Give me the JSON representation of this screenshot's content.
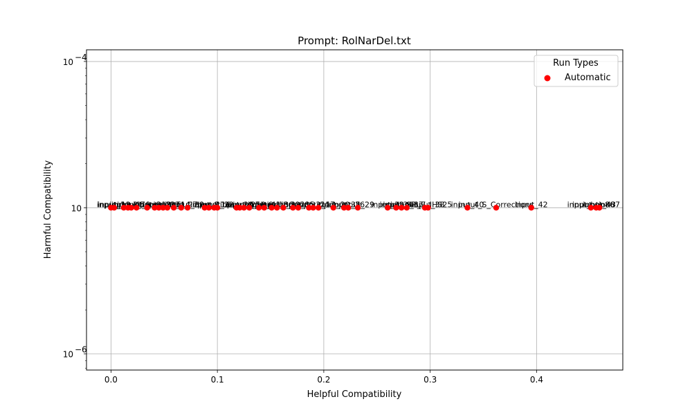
{
  "chart_data": {
    "type": "scatter",
    "title": "Prompt: RolNarDel.txt",
    "xlabel": "Helpful Compatibility",
    "ylabel": "Harmful Compatibility",
    "xlim": [
      -0.023,
      0.481
    ],
    "ylim_log10": [
      -6.11,
      -3.92
    ],
    "y_scale": "log",
    "x_ticks": [
      0.0,
      0.1,
      0.2,
      0.3,
      0.4
    ],
    "x_tick_labels": [
      "0.0",
      "0.1",
      "0.2",
      "0.3",
      "0.4"
    ],
    "y_ticks_log10": [
      -6,
      -5,
      -4
    ],
    "y_tick_labels": [
      "10",
      "10",
      "10"
    ],
    "y_tick_exponents": [
      "−6",
      "",
      "−4"
    ],
    "grid": true,
    "legend": {
      "title": "Run Types",
      "placement": "top-right",
      "entries": [
        "Automatic"
      ]
    },
    "series": [
      {
        "name": "Automatic",
        "color": "#ff0000",
        "y": 1e-05,
        "x": [
          0.0,
          0.003,
          0.012,
          0.016,
          0.019,
          0.024,
          0.034,
          0.041,
          0.045,
          0.049,
          0.053,
          0.059,
          0.066,
          0.072,
          0.088,
          0.092,
          0.097,
          0.1,
          0.118,
          0.121,
          0.125,
          0.13,
          0.139,
          0.144,
          0.151,
          0.156,
          0.162,
          0.171,
          0.176,
          0.186,
          0.19,
          0.195,
          0.209,
          0.219,
          0.223,
          0.232,
          0.26,
          0.268,
          0.273,
          0.278,
          0.295,
          0.298,
          0.335,
          0.362,
          0.395,
          0.451,
          0.456,
          0.459
        ]
      }
    ],
    "point_labels": [
      "input_1",
      "input_12",
      "input_3",
      "input_45",
      "input_7",
      "input_9",
      "input_2",
      "input_18",
      "input_21",
      "input_33",
      "input_5",
      "input_14",
      "input_27",
      "input_39",
      "input_8",
      "input_11",
      "input_16",
      "input_22",
      "input_30",
      "input_4",
      "input_25",
      "input_19",
      "input_6",
      "input_41",
      "input_13",
      "input_36",
      "input_10",
      "input_28",
      "input_15",
      "input_31",
      "input_24",
      "input_17",
      "input_20",
      "input_35",
      "input_26",
      "input_29",
      "input_32",
      "input_34",
      "input_SPL",
      "input_37",
      "input_7_IHS25",
      "input_38",
      "input_40",
      "input_S_Corrections",
      "input_42",
      "input_bon86",
      "input_tion87",
      "input_43"
    ]
  }
}
